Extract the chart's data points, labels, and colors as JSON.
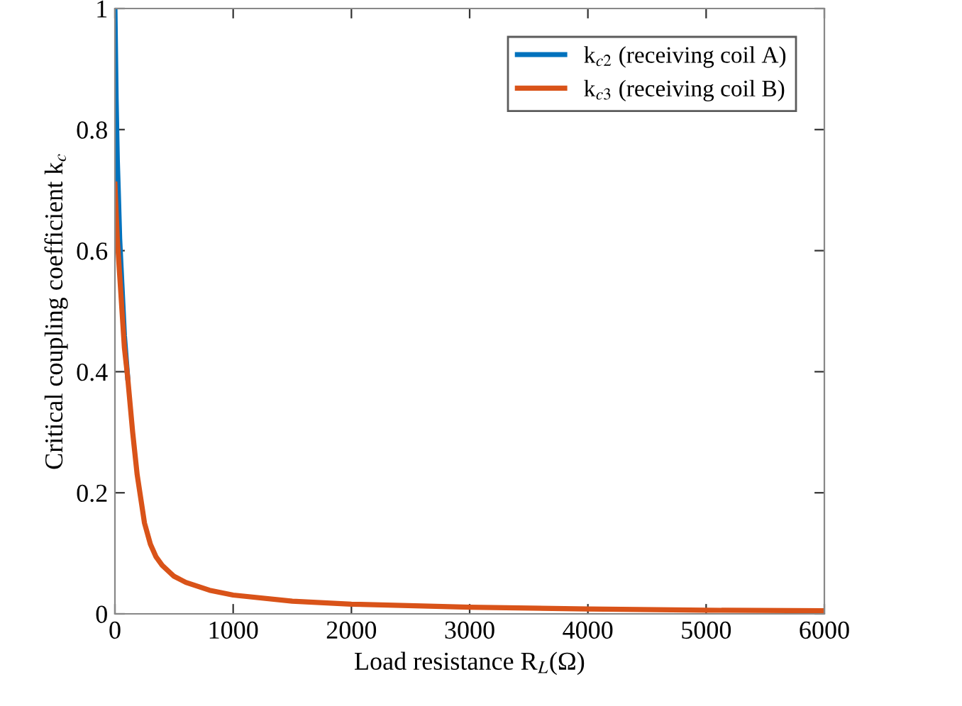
{
  "chart_data": {
    "type": "line",
    "xlabel": "Load resistance R$_{L}$(Ω)",
    "ylabel": "Critical coupling coefficient k$_{c}$",
    "xlim": [
      0,
      6000
    ],
    "ylim": [
      0,
      1
    ],
    "xticks": [
      0,
      1000,
      2000,
      3000,
      4000,
      5000,
      6000
    ],
    "yticks": [
      0,
      0.2,
      0.4,
      0.6,
      0.8,
      1
    ],
    "grid": false,
    "legend": "top right",
    "marker": "none",
    "line_style": "solid",
    "series": [
      {
        "name": "k$_{c2}$ (receiving coil A)",
        "color": "#0072bd",
        "x": [
          0,
          10,
          20,
          28,
          40,
          60,
          80,
          108
        ],
        "values": [
          1.0,
          0.85,
          0.75,
          0.7,
          0.62,
          0.54,
          0.46,
          0.39
        ]
      },
      {
        "name": "k$_{c3}$ (receiving coil B)",
        "color": "#d95319",
        "x": [
          0,
          20,
          40,
          60,
          80,
          108,
          150,
          188,
          250,
          300,
          348,
          400,
          500,
          600,
          800,
          1000,
          1500,
          2000,
          3000,
          4000,
          5000,
          6000
        ],
        "values": [
          0.71,
          0.62,
          0.56,
          0.5,
          0.44,
          0.39,
          0.3,
          0.23,
          0.15,
          0.115,
          0.094,
          0.08,
          0.062,
          0.052,
          0.039,
          0.031,
          0.021,
          0.016,
          0.011,
          0.008,
          0.006,
          0.005
        ]
      }
    ]
  }
}
